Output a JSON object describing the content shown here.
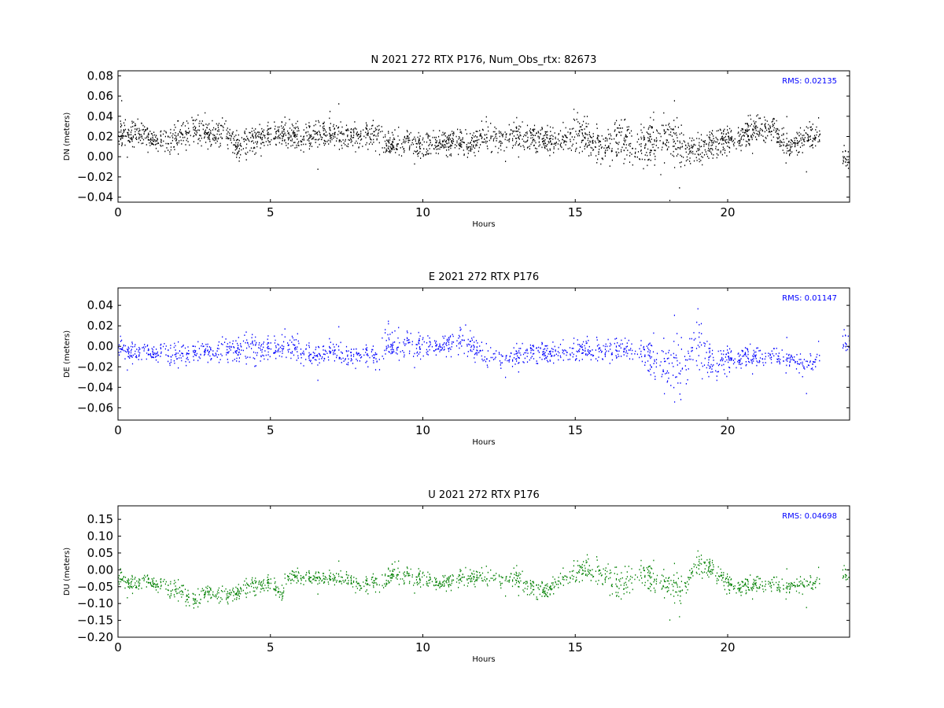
{
  "chart_data": [
    {
      "type": "scatter",
      "title": "N 2021 272 RTX  P176, Num_Obs_rtx: 82673",
      "xlabel": "Hours",
      "ylabel": "DN (meters)",
      "xlim": [
        0,
        24
      ],
      "ylim": [
        -0.045,
        0.085
      ],
      "xticks": [
        0,
        5,
        10,
        15,
        20
      ],
      "xtick_labels": [
        "0",
        "5",
        "10",
        "15",
        "20"
      ],
      "yticks": [
        -0.04,
        -0.02,
        0.0,
        0.02,
        0.04,
        0.06,
        0.08
      ],
      "ytick_labels": [
        "−0.04",
        "−0.02",
        "0.00",
        "0.02",
        "0.04",
        "0.06",
        "0.08"
      ],
      "annotation": "RMS:  0.02135",
      "grid": false,
      "color": "#000000",
      "series": [
        {
          "x": [
            0,
            0.5,
            1,
            1.5,
            2,
            2.5,
            3,
            3.5,
            4,
            4.5,
            5,
            5.5,
            6,
            6.5,
            7,
            7.5,
            8,
            8.5,
            9,
            9.5,
            10,
            10.5,
            11,
            11.5,
            12,
            12.5,
            13,
            13.5,
            14,
            14.5,
            15,
            15.5,
            16,
            16.5,
            17,
            17.5,
            18,
            18.5,
            19,
            19.5,
            20,
            20.5,
            21,
            21.5,
            22,
            22.5,
            23,
            23.75,
            24
          ],
          "values": [
            0.022,
            0.025,
            0.02,
            0.015,
            0.02,
            0.028,
            0.022,
            0.024,
            0.008,
            0.02,
            0.022,
            0.024,
            0.018,
            0.025,
            0.02,
            0.022,
            0.02,
            0.024,
            0.012,
            0.015,
            0.012,
            0.014,
            0.015,
            0.012,
            0.022,
            0.018,
            0.022,
            0.02,
            0.018,
            0.016,
            0.028,
            0.015,
            0.012,
            0.02,
            0.008,
            0.018,
            0.022,
            0.01,
            0.008,
            0.012,
            0.018,
            0.02,
            0.03,
            0.028,
            0.01,
            0.02,
            0.02,
            0.0,
            0.0
          ],
          "spread": [
            0.012,
            0.012,
            0.012,
            0.012,
            0.013,
            0.016,
            0.013,
            0.013,
            0.015,
            0.012,
            0.012,
            0.012,
            0.012,
            0.015,
            0.012,
            0.012,
            0.012,
            0.014,
            0.012,
            0.012,
            0.012,
            0.012,
            0.012,
            0.012,
            0.014,
            0.012,
            0.014,
            0.012,
            0.012,
            0.012,
            0.02,
            0.015,
            0.015,
            0.02,
            0.022,
            0.022,
            0.025,
            0.02,
            0.015,
            0.015,
            0.012,
            0.013,
            0.014,
            0.013,
            0.013,
            0.012,
            0.012,
            0.012,
            0.012
          ]
        }
      ]
    },
    {
      "type": "scatter",
      "title": "E 2021 272 RTX  P176",
      "xlabel": "Hours",
      "ylabel": "DE (meters)",
      "xlim": [
        0,
        24
      ],
      "ylim": [
        -0.072,
        0.057
      ],
      "xticks": [
        0,
        5,
        10,
        15,
        20
      ],
      "xtick_labels": [
        "0",
        "5",
        "10",
        "15",
        "20"
      ],
      "yticks": [
        -0.06,
        -0.04,
        -0.02,
        0.0,
        0.02,
        0.04
      ],
      "ytick_labels": [
        "−0.06",
        "−0.04",
        "−0.02",
        "0.00",
        "0.02",
        "0.04"
      ],
      "annotation": "RMS:  0.01147",
      "grid": false,
      "color": "#0000ff",
      "series": [
        {
          "x": [
            0,
            0.5,
            1,
            1.5,
            2,
            2.5,
            3,
            3.5,
            4,
            4.5,
            5,
            5.5,
            6,
            6.5,
            7,
            7.5,
            8,
            8.5,
            8.8,
            9,
            9.5,
            10,
            10.5,
            11,
            11.5,
            12,
            12.5,
            13,
            13.5,
            14,
            14.5,
            15,
            15.5,
            16,
            16.5,
            17,
            17.5,
            18,
            18.5,
            19,
            19.5,
            20,
            20.5,
            21,
            21.5,
            22,
            22.5,
            23,
            23.75,
            24
          ],
          "values": [
            0.0,
            -0.005,
            -0.005,
            -0.006,
            -0.008,
            -0.005,
            -0.004,
            -0.004,
            -0.002,
            0.0,
            -0.003,
            0.002,
            -0.005,
            -0.008,
            -0.006,
            -0.008,
            -0.008,
            -0.01,
            0.015,
            -0.002,
            0.002,
            0.002,
            0.0,
            0.004,
            0.005,
            -0.01,
            -0.012,
            -0.01,
            -0.005,
            -0.005,
            -0.006,
            -0.002,
            -0.004,
            -0.002,
            -0.002,
            -0.002,
            -0.01,
            -0.018,
            -0.022,
            0.005,
            -0.02,
            -0.012,
            -0.01,
            -0.01,
            -0.008,
            -0.012,
            -0.018,
            -0.01,
            0.005,
            0.005
          ],
          "spread": [
            0.01,
            0.01,
            0.01,
            0.01,
            0.01,
            0.01,
            0.01,
            0.012,
            0.014,
            0.014,
            0.012,
            0.012,
            0.012,
            0.01,
            0.01,
            0.01,
            0.01,
            0.01,
            0.02,
            0.014,
            0.014,
            0.012,
            0.01,
            0.012,
            0.014,
            0.01,
            0.01,
            0.01,
            0.01,
            0.01,
            0.01,
            0.01,
            0.01,
            0.01,
            0.01,
            0.012,
            0.02,
            0.028,
            0.03,
            0.03,
            0.016,
            0.012,
            0.01,
            0.01,
            0.008,
            0.01,
            0.01,
            0.01,
            0.012,
            0.012
          ]
        }
      ]
    },
    {
      "type": "scatter",
      "title": "U 2021 272 RTX  P176",
      "xlabel": "Hours",
      "ylabel": "DU (meters)",
      "xlim": [
        0,
        24
      ],
      "ylim": [
        -0.2,
        0.19
      ],
      "xticks": [
        0,
        5,
        10,
        15,
        20
      ],
      "xtick_labels": [
        "0",
        "5",
        "10",
        "15",
        "20"
      ],
      "yticks": [
        -0.2,
        -0.15,
        -0.1,
        -0.05,
        0.0,
        0.05,
        0.1,
        0.15
      ],
      "ytick_labels": [
        "−0.20",
        "−0.15",
        "−0.10",
        "−0.05",
        "0.00",
        "0.05",
        "0.10",
        "0.15"
      ],
      "annotation": "RMS:  0.04698",
      "grid": false,
      "color": "#008000",
      "series": [
        {
          "x": [
            0,
            0.5,
            1,
            1.5,
            2,
            2.5,
            3,
            3.5,
            4,
            4.5,
            5,
            5.4,
            5.5,
            6,
            6.5,
            7,
            7.5,
            8,
            8.5,
            9,
            9.5,
            10,
            10.5,
            11,
            11.5,
            12,
            12.5,
            13,
            13.5,
            14,
            14.5,
            15,
            15.5,
            16,
            16.5,
            17,
            17.5,
            18,
            18.5,
            19,
            19.5,
            20,
            20.5,
            21,
            21.5,
            22,
            22.5,
            23,
            23.75,
            24
          ],
          "values": [
            -0.02,
            -0.04,
            -0.03,
            -0.05,
            -0.06,
            -0.09,
            -0.06,
            -0.08,
            -0.06,
            -0.04,
            -0.04,
            -0.07,
            -0.02,
            -0.02,
            -0.02,
            -0.03,
            -0.02,
            -0.05,
            -0.03,
            -0.01,
            -0.02,
            -0.02,
            -0.04,
            -0.03,
            -0.02,
            -0.02,
            -0.03,
            -0.02,
            -0.05,
            -0.06,
            -0.03,
            0.0,
            0.0,
            -0.01,
            -0.05,
            0.0,
            -0.02,
            -0.04,
            -0.06,
            0.02,
            0.0,
            -0.04,
            -0.05,
            -0.04,
            -0.04,
            -0.05,
            -0.04,
            -0.03,
            -0.01,
            -0.01
          ],
          "spread": [
            0.025,
            0.025,
            0.025,
            0.025,
            0.025,
            0.03,
            0.025,
            0.025,
            0.025,
            0.025,
            0.025,
            0.025,
            0.02,
            0.02,
            0.02,
            0.02,
            0.02,
            0.025,
            0.025,
            0.03,
            0.03,
            0.025,
            0.025,
            0.025,
            0.025,
            0.025,
            0.025,
            0.03,
            0.03,
            0.025,
            0.025,
            0.03,
            0.035,
            0.035,
            0.05,
            0.05,
            0.045,
            0.04,
            0.04,
            0.035,
            0.03,
            0.025,
            0.025,
            0.025,
            0.025,
            0.025,
            0.025,
            0.025,
            0.025,
            0.025
          ]
        }
      ]
    }
  ]
}
